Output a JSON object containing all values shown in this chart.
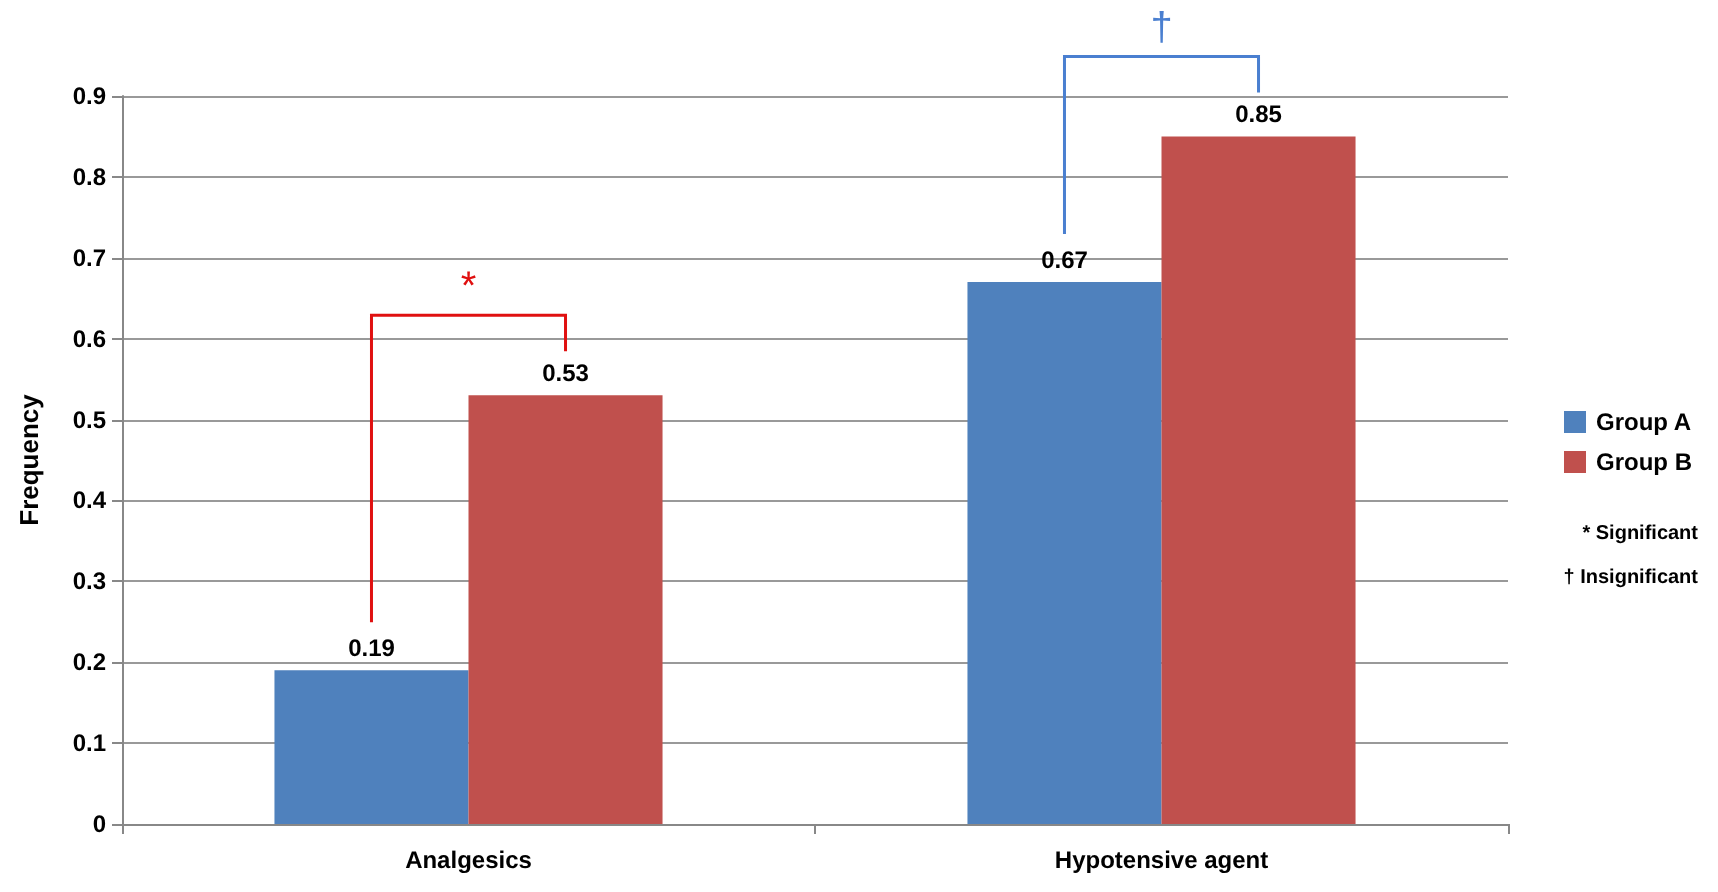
{
  "chart_data": {
    "type": "bar",
    "ylabel": "Frequency",
    "categories": [
      "Analgesics",
      "Hypotensive agent"
    ],
    "series": [
      {
        "name": "Group A",
        "color": "#4f81bd",
        "values": [
          0.19,
          0.67
        ]
      },
      {
        "name": "Group B",
        "color": "#c0504d",
        "values": [
          0.53,
          0.85
        ]
      }
    ],
    "ylim": [
      0,
      0.9
    ],
    "yticks": [
      0,
      0.1,
      0.2,
      0.3,
      0.4,
      0.5,
      0.6,
      0.7,
      0.8,
      0.9
    ],
    "grid": "y",
    "legend": "right",
    "data_labels": true,
    "annotations": [
      "*",
      "†",
      "* Significant",
      "† Insignificant"
    ]
  }
}
